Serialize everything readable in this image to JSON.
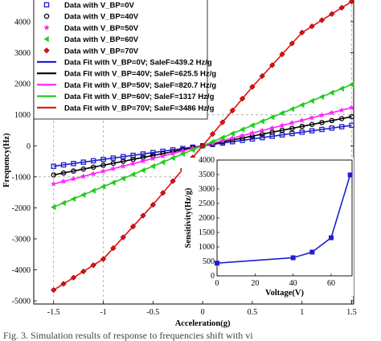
{
  "chart_data": [
    {
      "type": "line",
      "xlabel": "Acceleration(g)",
      "ylabel": "Frequency(Hz)",
      "xlim": [
        -1.7,
        1.52
      ],
      "ylim": [
        -5100,
        4700
      ],
      "xticks": [
        "-1.5",
        "-1",
        "-0.5",
        "0",
        "0.5",
        "1",
        "1.5"
      ],
      "yticks": [
        "-5000",
        "-4000",
        "-3000",
        "-2000",
        "-1000",
        "0",
        "1000",
        "2000",
        "3000",
        "4000"
      ],
      "grid": "dashed",
      "legend_position": "top-left",
      "series": [
        {
          "name": "Data with V_BP=0V",
          "kind": "data",
          "marker": "square",
          "color": "#1f1fd0",
          "fit_points": [
            [
              -1.5,
              -658.8
            ],
            [
              1.5,
              658.8
            ]
          ]
        },
        {
          "name": "Data with V_BP=40V",
          "kind": "data",
          "marker": "circle",
          "color": "#000000",
          "fit_points": [
            [
              -1.5,
              -938.3
            ],
            [
              1.5,
              938.3
            ]
          ]
        },
        {
          "name": "Data with V_BP=50V",
          "kind": "data",
          "marker": "star",
          "color": "#ff22ff",
          "fit_points": [
            [
              -1.5,
              -1231
            ],
            [
              1.5,
              1231
            ]
          ]
        },
        {
          "name": "Data with V_BP=60V",
          "kind": "data",
          "marker": "triangle",
          "color": "#22cc22",
          "fit_points": [
            [
              -1.5,
              -1975
            ],
            [
              1.5,
              1975
            ]
          ]
        },
        {
          "name": "Data with V_BP=70V",
          "kind": "data",
          "marker": "diamond",
          "color": "#e01010",
          "fit_points": [
            [
              -1.5,
              -4650
            ],
            [
              -1,
              -3650
            ],
            [
              -0.5,
              -1900
            ],
            [
              0,
              0
            ],
            [
              0.5,
              1900
            ],
            [
              1,
              3650
            ],
            [
              1.5,
              4650
            ]
          ]
        },
        {
          "name": "Data Fit with V_BP=0V; SaleF=439.2 Hz/g",
          "kind": "fit",
          "color": "#1f1fd0"
        },
        {
          "name": "Data Fit with V_BP=40V; SaleF=625.5 Hz/g",
          "kind": "fit",
          "color": "#000000"
        },
        {
          "name": "Data Fit with V_BP=50V; SaleF=820.7 Hz/g",
          "kind": "fit",
          "color": "#ff22ff"
        },
        {
          "name": "Data Fit with V_BP=60V; SaleF=1317 Hz/g",
          "kind": "fit",
          "color": "#22cc22"
        },
        {
          "name": "Data Fit with V_BP=70V; SaleF=3486 Hz/g",
          "kind": "fit",
          "color": "#e01010"
        }
      ]
    },
    {
      "type": "line",
      "xlabel": "Voltage(V)",
      "ylabel": "Sensitivity(Hz/g)",
      "xlim": [
        0,
        71
      ],
      "ylim": [
        0,
        4000
      ],
      "xticks": [
        "0",
        "20",
        "40",
        "60"
      ],
      "yticks": [
        "0",
        "500",
        "1000",
        "1500",
        "2000",
        "2500",
        "3000",
        "3500",
        "4000"
      ],
      "color": "#1f1fd0",
      "x": [
        0,
        40,
        50,
        60,
        70
      ],
      "y": [
        439.2,
        625.5,
        820.7,
        1317,
        3486
      ]
    }
  ],
  "caption": "Fig. 3.  Simulation results of response to frequencies shift with vi"
}
